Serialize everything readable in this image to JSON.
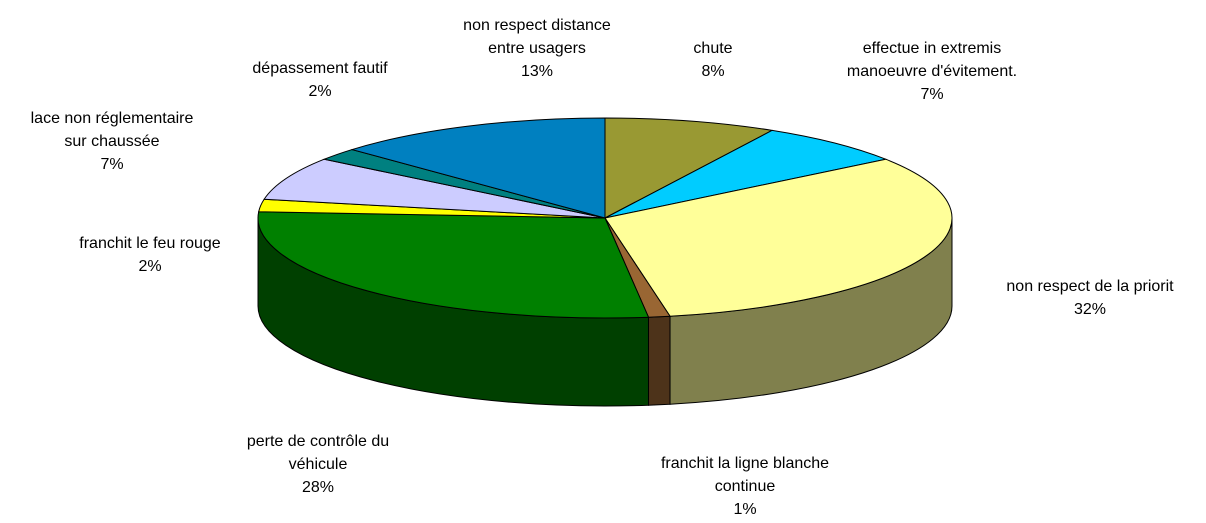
{
  "chart_data": {
    "type": "pie3d",
    "categories": [
      "chute",
      "effectue in extremis\nmanoeuvre d'évitement.",
      "non respect de la priorit",
      "franchit la ligne blanche\ncontinue",
      "perte de contrôle du\nvéhicule",
      "franchit le feu rouge",
      "lace non réglementaire\nsur chaussée",
      "dépassement fautif",
      "non respect distance\nentre usagers"
    ],
    "values": [
      8,
      7,
      32,
      1,
      28,
      2,
      7,
      2,
      13
    ],
    "value_labels": [
      "8%",
      "7%",
      "32%",
      "1%",
      "28%",
      "2%",
      "7%",
      "2%",
      "13%"
    ],
    "colors": [
      "#999933",
      "#00ccff",
      "#ffff99",
      "#996633",
      "#008000",
      "#ffff00",
      "#ccccff",
      "#008080",
      "#0080c0"
    ]
  }
}
